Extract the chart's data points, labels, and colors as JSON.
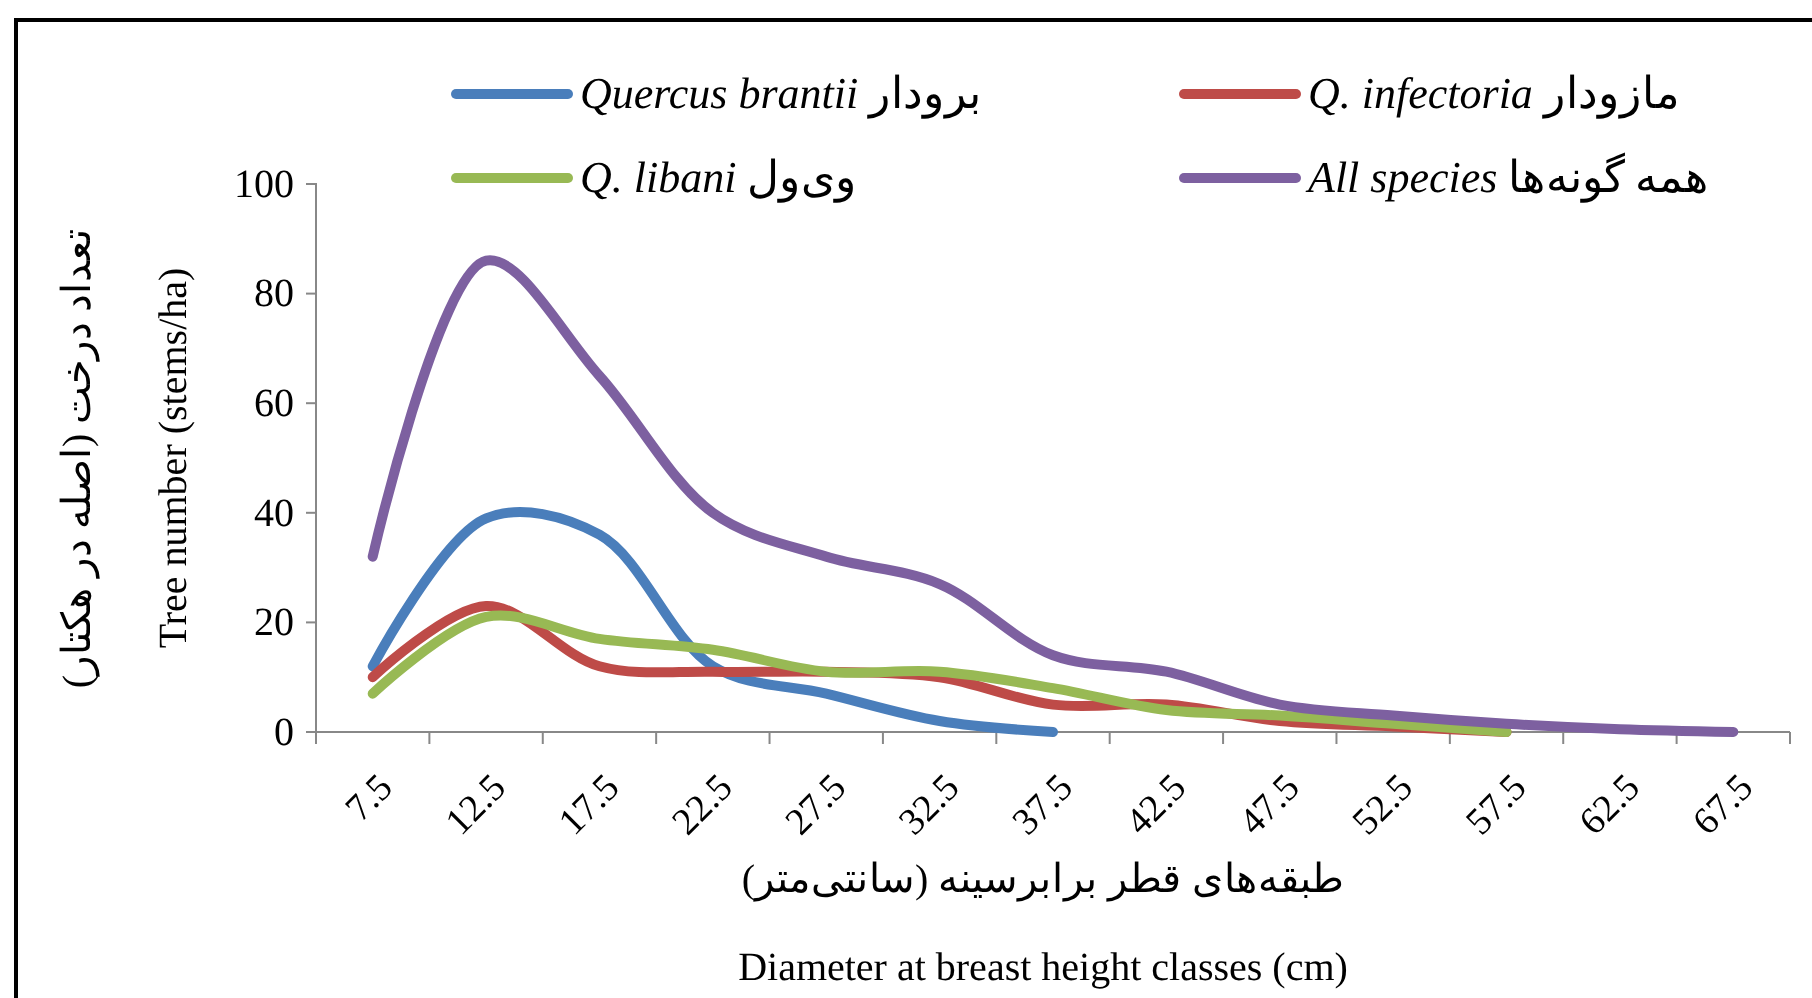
{
  "chart_data": {
    "type": "line",
    "xlabel": "طبقه‌های قطر برابرسینه (سانتی‌متر)\nDiameter at breast height classes (cm)",
    "ylabel": "تعداد درخت (اصله در هکتار)\nTree number (stems/ha)",
    "categories": [
      "7.5",
      "12.5",
      "17.5",
      "22.5",
      "27.5",
      "32.5",
      "37.5",
      "42.5",
      "47.5",
      "52.5",
      "57.5",
      "62.5",
      "67.5"
    ],
    "series": [
      {
        "name": "Quercus brantii برودار",
        "color": "#4a7ebb",
        "values": [
          12,
          39,
          36,
          12,
          7,
          2,
          0,
          null,
          null,
          null,
          null,
          null,
          null
        ]
      },
      {
        "name": "Q. infectoria مازودار",
        "color": "#be4b48",
        "values": [
          10,
          23,
          12,
          11,
          11,
          10,
          5,
          5,
          2,
          1,
          0,
          null,
          null
        ]
      },
      {
        "name": "Q. libani وی‌ول",
        "color": "#98b954",
        "values": [
          7,
          21,
          17,
          15,
          11,
          11,
          8,
          4,
          3,
          1.5,
          0,
          null,
          null
        ]
      },
      {
        "name": "All species همه گونه‌ها",
        "color": "#7d60a0",
        "values": [
          32,
          86,
          65,
          40,
          32,
          27,
          14,
          11,
          5,
          3,
          1.5,
          0.5,
          0
        ]
      }
    ],
    "ylim": [
      0,
      100
    ],
    "yticks": [
      0,
      20,
      40,
      60,
      80,
      100
    ],
    "legend": "top",
    "marker": "none",
    "line_style": "solid"
  }
}
